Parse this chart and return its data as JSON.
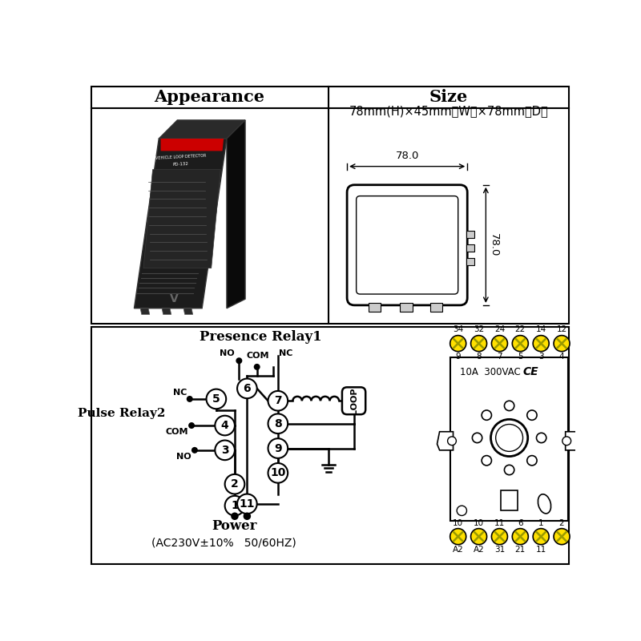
{
  "bg_color": "#ffffff",
  "title_appearance": "Appearance",
  "title_size": "Size",
  "size_text": "78mm(H)×45mm（W）×78mm（D）",
  "dim_width": "78.0",
  "dim_height": "78.0",
  "presence_relay_label": "Presence Relay1",
  "pulse_relay_label": "Pulse Relay2",
  "power_label": "Power",
  "power_spec": "(AC230V±10%   50/60HZ)",
  "rating_label": "10A  300VAC",
  "top_pins": [
    "34",
    "32",
    "24",
    "22",
    "14",
    "12"
  ],
  "top_sub": [
    "9",
    "8",
    "7",
    "5",
    "3",
    "4"
  ],
  "bot_labels_top": [
    "10",
    "10",
    "11",
    "6",
    "1",
    "2"
  ],
  "bot_labels_bot": [
    "A2",
    "A2",
    "31",
    "21",
    "11",
    ""
  ]
}
